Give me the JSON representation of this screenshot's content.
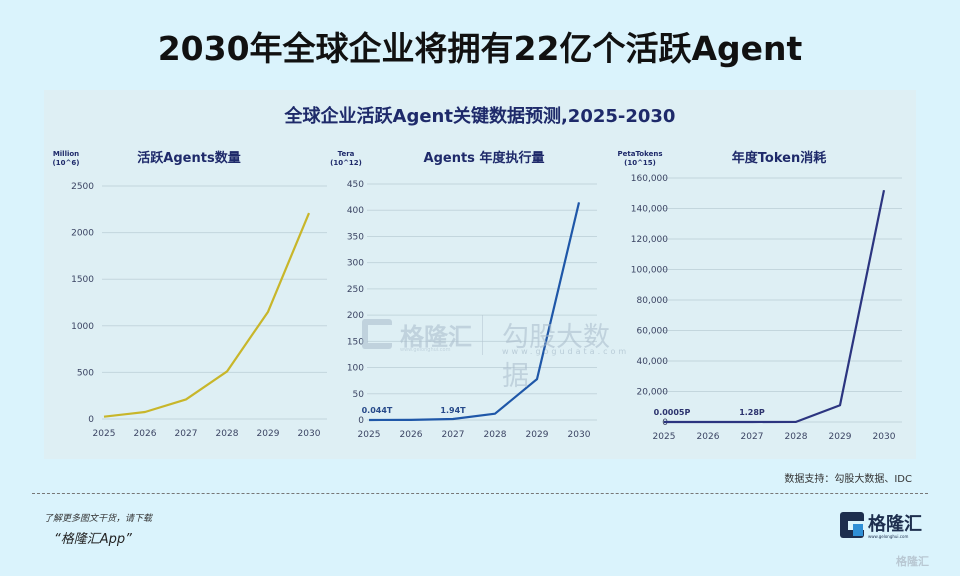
{
  "header": {
    "title": "2030年全球企业将拥有22亿个活跃Agent"
  },
  "panel": {
    "title": "全球企业活跃Agent关键数据预测,2025-2030"
  },
  "watermark": {
    "brand_cn": "格隆汇",
    "brand_url": "www.gelonghui.com",
    "partner_cn": "勾股大数据",
    "partner_url": "www.gogudata.com"
  },
  "chart_data": [
    {
      "type": "line",
      "title": "活跃Agents数量",
      "unit_line1": "Million",
      "unit_line2": "(10^6)",
      "ylabel": "Million (10^6)",
      "xlabel": "",
      "categories": [
        "2025",
        "2026",
        "2027",
        "2028",
        "2029",
        "2030"
      ],
      "values": [
        25,
        75,
        210,
        510,
        1150,
        2210
      ],
      "ylim": [
        0,
        2500
      ],
      "yticks": [
        "0",
        "500",
        "1000",
        "1500",
        "2000",
        "2500"
      ],
      "color": "#c8b62a",
      "grid": true,
      "annotations": []
    },
    {
      "type": "line",
      "title": "Agents 年度执行量",
      "unit_line1": "Tera",
      "unit_line2": "(10^12)",
      "ylabel": "Tera (10^12)",
      "xlabel": "",
      "categories": [
        "2025",
        "2026",
        "2027",
        "2028",
        "2029",
        "2030"
      ],
      "values": [
        0.044,
        0.3,
        1.94,
        12,
        78,
        415
      ],
      "ylim": [
        0,
        450
      ],
      "yticks": [
        "0",
        "50",
        "100",
        "150",
        "200",
        "250",
        "300",
        "350",
        "400",
        "450"
      ],
      "color": "#1f57a8",
      "grid": true,
      "annotations": [
        {
          "x": "2025",
          "text": "0.044T"
        },
        {
          "x": "2027",
          "text": "1.94T"
        }
      ]
    },
    {
      "type": "line",
      "title": "年度Token消耗",
      "unit_line1": "PetaTokens",
      "unit_line2": "(10^15)",
      "ylabel": "PetaTokens (10^15)",
      "xlabel": "",
      "categories": [
        "2025",
        "2026",
        "2027",
        "2028",
        "2029",
        "2030"
      ],
      "values": [
        0.0005,
        0.02,
        1.28,
        100,
        11000,
        152000
      ],
      "ylim": [
        0,
        160000
      ],
      "yticks": [
        "0",
        "20,000",
        "40,000",
        "60,000",
        "80,000",
        "100,000",
        "120,000",
        "140,000",
        "160,000"
      ],
      "color": "#2c3580",
      "grid": true,
      "annotations": [
        {
          "x": "2025",
          "text": "0.0005P"
        },
        {
          "x": "2027",
          "text": "1.28P"
        }
      ]
    }
  ],
  "footer": {
    "source": "数据支持：勾股大数据、IDC",
    "promo_line1": "了解更多图文干货，请下载",
    "promo_line2": "“格隆汇App”",
    "brand_cn": "格隆汇",
    "brand_url": "www.gelonghui.com",
    "corner_mark": "格隆汇"
  }
}
